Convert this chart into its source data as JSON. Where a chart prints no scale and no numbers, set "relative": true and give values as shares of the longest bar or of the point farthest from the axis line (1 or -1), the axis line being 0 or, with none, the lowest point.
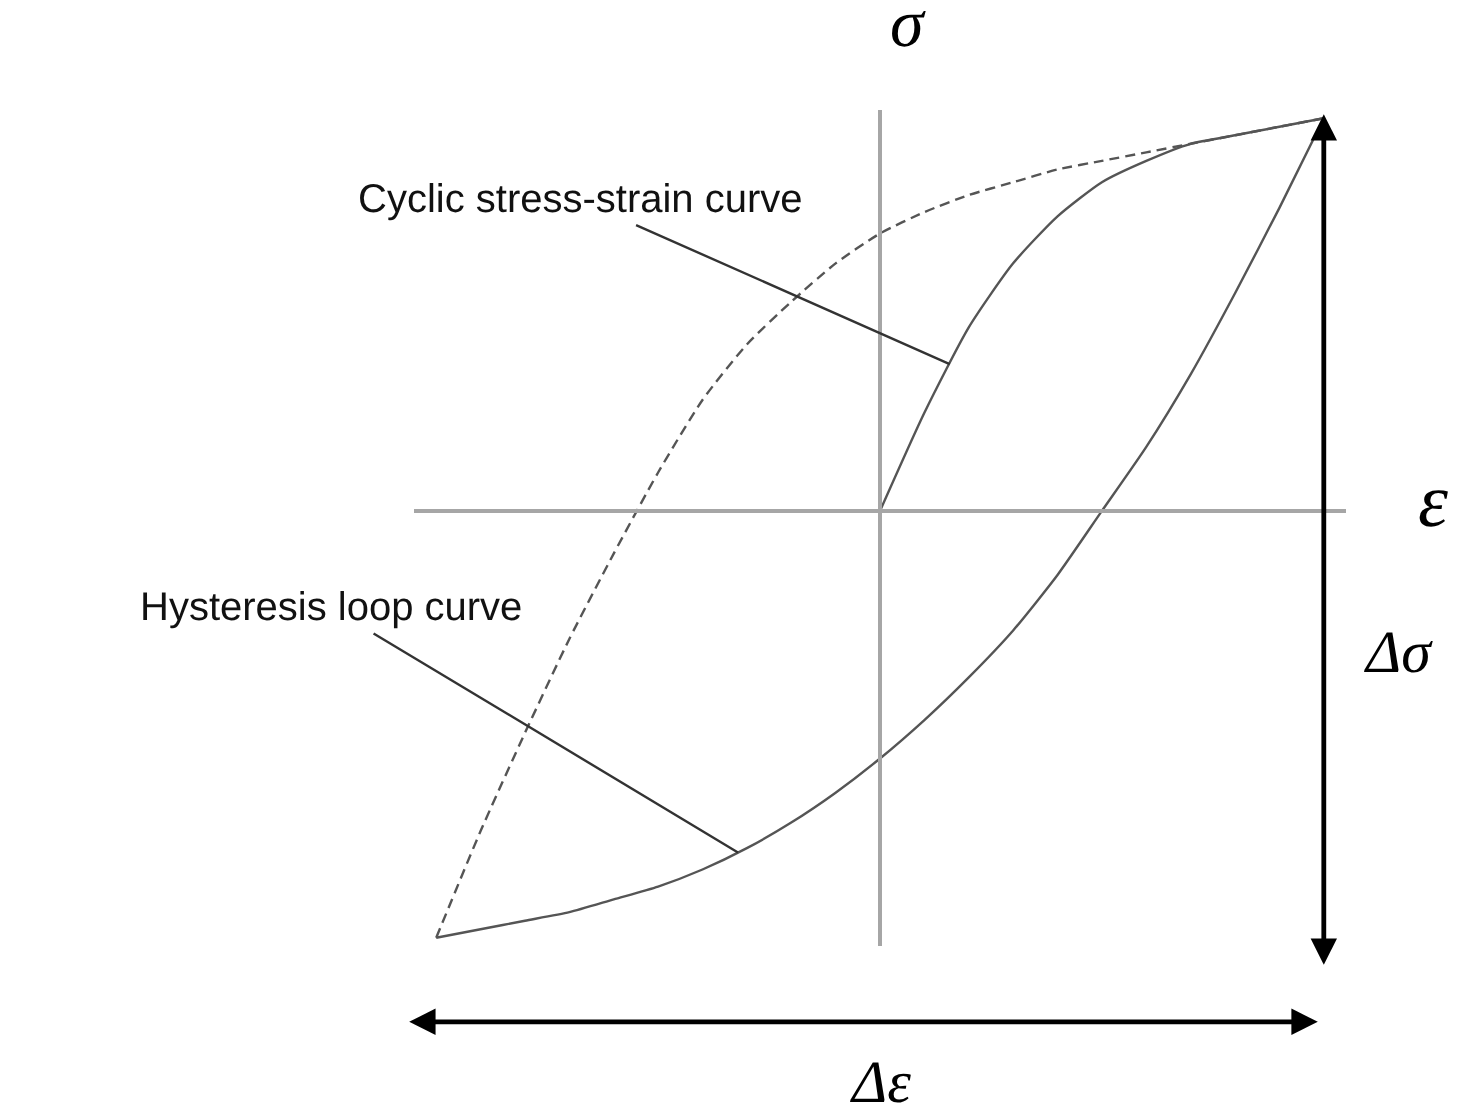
{
  "chart_data": {
    "type": "line",
    "relative": true,
    "xlabel": "ε",
    "ylabel": "σ",
    "categories": [
      null,
      null,
      null,
      null,
      null,
      null,
      null,
      null,
      null,
      null,
      null,
      null,
      null,
      null,
      null,
      null,
      null,
      null,
      null,
      null,
      null
    ],
    "series": [
      {
        "name": "Cyclic stress-strain curve",
        "color": "#555555",
        "line_style": "solid",
        "values": [
          null,
          null,
          null,
          null,
          null,
          null,
          null,
          null,
          null,
          null,
          0,
          0.23,
          0.43,
          0.58,
          0.69,
          0.77,
          0.82,
          0.86,
          0.88,
          0.9,
          0.92
        ]
      },
      {
        "color": "#555555",
        "line_style": "dashed",
        "values": [
          -1,
          -0.75,
          -0.52,
          -0.3,
          -0.1,
          0.09,
          0.26,
          0.39,
          0.49,
          0.58,
          0.65,
          0.7,
          0.74,
          0.77,
          0.8,
          0.82,
          0.84,
          0.86,
          0.88,
          0.9,
          0.92
        ]
      },
      {
        "name": "Hysteresis loop curve",
        "color": "#555555",
        "line_style": "solid",
        "values": [
          -1,
          -0.98,
          -0.96,
          -0.94,
          -0.91,
          -0.88,
          -0.84,
          -0.79,
          -0.73,
          -0.66,
          -0.58,
          -0.49,
          -0.39,
          -0.28,
          -0.15,
          0,
          0.15,
          0.32,
          0.51,
          0.71,
          0.92
        ]
      }
    ],
    "annotations": [
      "Δσ",
      "Δε"
    ]
  }
}
